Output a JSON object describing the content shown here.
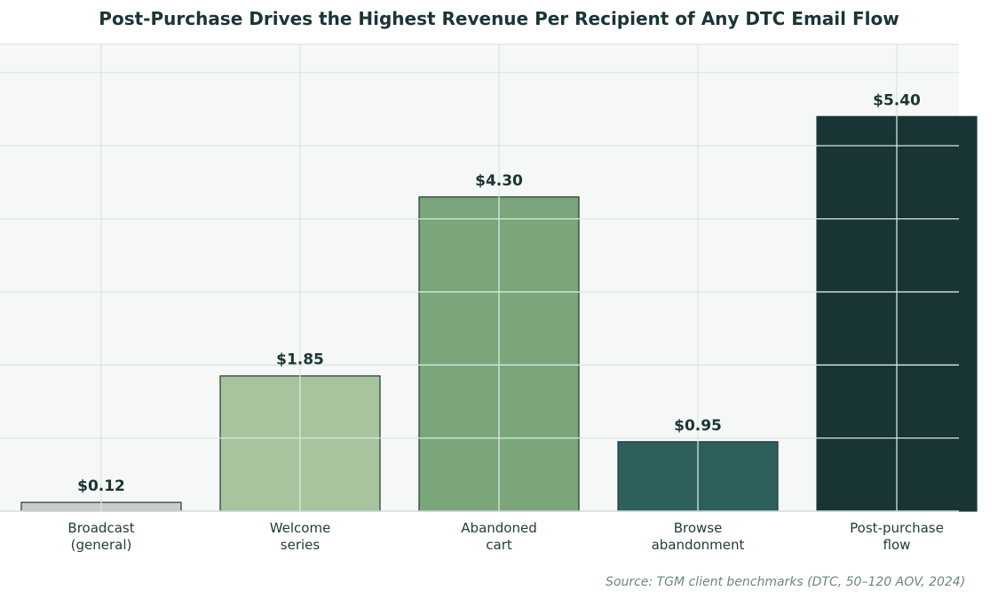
{
  "chart_data": {
    "type": "bar",
    "title": "Post-Purchase Drives the Highest Revenue Per Recipient of Any DTC Email Flow",
    "categories": [
      [
        "Broadcast",
        "(general)"
      ],
      [
        "Welcome",
        "series"
      ],
      [
        "Abandoned",
        "cart"
      ],
      [
        "Browse",
        "abandonment"
      ],
      [
        "Post-purchase",
        "flow"
      ]
    ],
    "values": [
      0.12,
      1.85,
      4.3,
      0.95,
      5.4
    ],
    "value_labels": [
      "$0.12",
      "$1.85",
      "$4.30",
      "$0.95",
      "$5.40"
    ],
    "bar_colors": [
      "#c8ccca",
      "#a8c49e",
      "#7ba67c",
      "#2d5f5d",
      "#183434"
    ],
    "ylim": [
      0,
      6
    ],
    "grid": true,
    "xlabel": "",
    "ylabel": "",
    "source": "Source: TGM client benchmarks (DTC, 50–120 AOV, 2024)"
  }
}
